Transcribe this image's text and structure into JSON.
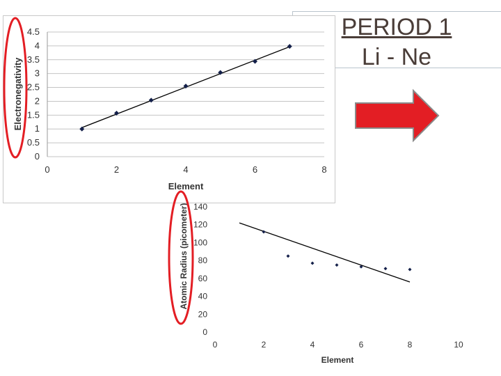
{
  "slide": {
    "title_line1": "PERIOD 1",
    "title_line2": "Li - Ne",
    "arrow_color": "#e31e24",
    "highlight_color": "#e31e24"
  },
  "chart_data": [
    {
      "type": "scatter",
      "xlabel": "Element",
      "ylabel": "Electronegativity",
      "xlim": [
        0,
        8
      ],
      "ylim": [
        0,
        4.5
      ],
      "xticks": [
        "0",
        "2",
        "4",
        "6",
        "8"
      ],
      "yticks": [
        "0",
        "0.5",
        "1",
        "1.5",
        "2",
        "2.5",
        "3",
        "3.5",
        "4",
        "4.5"
      ],
      "grid": true,
      "points": [
        {
          "x": 1,
          "y": 1.0
        },
        {
          "x": 2,
          "y": 1.57
        },
        {
          "x": 3,
          "y": 2.04
        },
        {
          "x": 4,
          "y": 2.55
        },
        {
          "x": 5,
          "y": 3.04
        },
        {
          "x": 6,
          "y": 3.44
        },
        {
          "x": 7,
          "y": 3.98
        }
      ],
      "trendline": {
        "x1": 1,
        "y1": 1.05,
        "x2": 7,
        "y2": 3.97
      },
      "color": "#14204a"
    },
    {
      "type": "scatter",
      "xlabel": "Element",
      "ylabel": "Atomic Radius (picometer)",
      "xlim": [
        0,
        10
      ],
      "ylim": [
        0,
        140
      ],
      "xticks": [
        "0",
        "2",
        "4",
        "6",
        "8",
        "10"
      ],
      "yticks": [
        "0",
        "20",
        "40",
        "60",
        "80",
        "100",
        "120",
        "140"
      ],
      "grid": false,
      "points": [
        {
          "x": 2,
          "y": 112
        },
        {
          "x": 3,
          "y": 85
        },
        {
          "x": 4,
          "y": 77
        },
        {
          "x": 5,
          "y": 75
        },
        {
          "x": 6,
          "y": 73
        },
        {
          "x": 7,
          "y": 71
        },
        {
          "x": 8,
          "y": 70
        }
      ],
      "trendline": {
        "x1": 1,
        "y1": 122,
        "x2": 8,
        "y2": 56
      },
      "color": "#14204a"
    }
  ]
}
